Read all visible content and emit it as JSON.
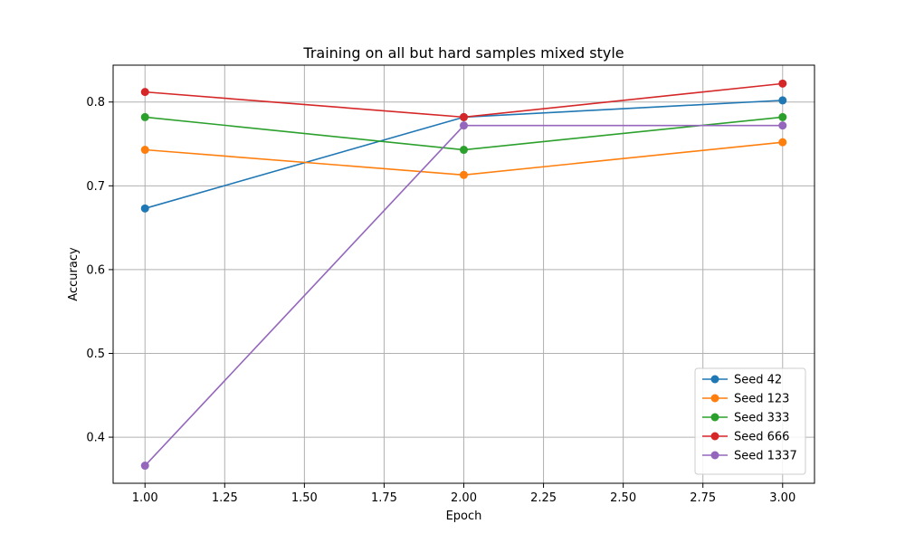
{
  "chart_data": {
    "type": "line",
    "title": "Training on all but hard samples mixed style",
    "xlabel": "Epoch",
    "ylabel": "Accuracy",
    "x": [
      1.0,
      2.0,
      3.0
    ],
    "xlim": [
      0.9,
      3.1
    ],
    "ylim": [
      0.345,
      0.844
    ],
    "xticks": [
      1.0,
      1.25,
      1.5,
      1.75,
      2.0,
      2.25,
      2.5,
      2.75,
      3.0
    ],
    "xtick_labels": [
      "1.00",
      "1.25",
      "1.50",
      "1.75",
      "2.00",
      "2.25",
      "2.50",
      "2.75",
      "3.00"
    ],
    "yticks": [
      0.4,
      0.5,
      0.6,
      0.7,
      0.8
    ],
    "ytick_labels": [
      "0.4",
      "0.5",
      "0.6",
      "0.7",
      "0.8"
    ],
    "grid": true,
    "legend_position": "bottom-right",
    "series": [
      {
        "name": "Seed 42",
        "color": "#1f77b4",
        "values": [
          0.673,
          0.782,
          0.802
        ]
      },
      {
        "name": "Seed 123",
        "color": "#ff7f0e",
        "values": [
          0.743,
          0.713,
          0.752
        ]
      },
      {
        "name": "Seed 333",
        "color": "#2ca02c",
        "values": [
          0.782,
          0.743,
          0.782
        ]
      },
      {
        "name": "Seed 666",
        "color": "#d62728",
        "values": [
          0.812,
          0.782,
          0.822
        ]
      },
      {
        "name": "Seed 1337",
        "color": "#9467bd",
        "values": [
          0.366,
          0.772,
          0.772
        ]
      }
    ]
  }
}
